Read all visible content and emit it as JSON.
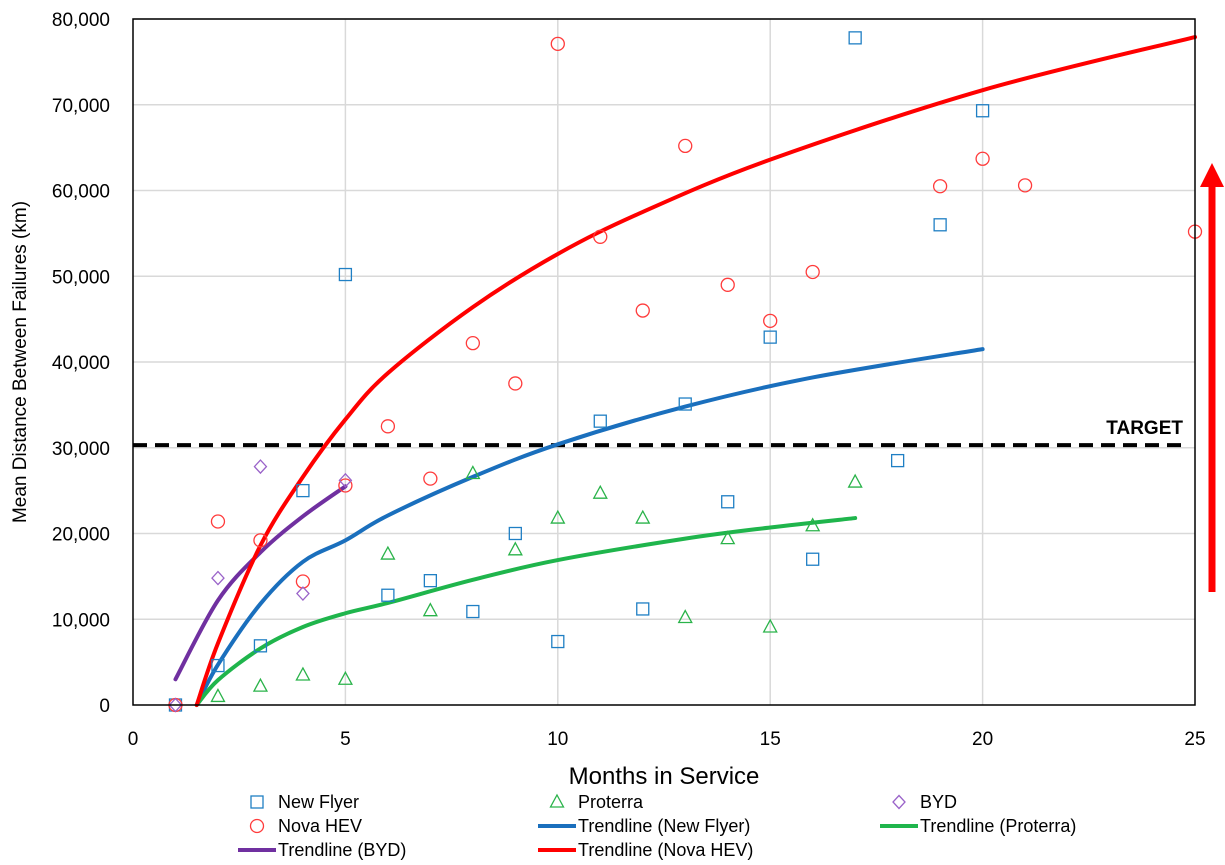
{
  "chart_data": {
    "type": "scatter",
    "title": "",
    "xlabel": "Months in Service",
    "ylabel": "Mean Distance Between Failures (km)",
    "xlim": [
      0,
      25
    ],
    "ylim": [
      0,
      80000
    ],
    "x_ticks": [
      0,
      5,
      10,
      15,
      20,
      25
    ],
    "y_ticks": [
      0,
      10000,
      20000,
      30000,
      40000,
      50000,
      60000,
      70000,
      80000
    ],
    "x_tick_labels": [
      "0",
      "5",
      "10",
      "15",
      "20",
      "25"
    ],
    "y_tick_labels": [
      "0",
      "10,000",
      "20,000",
      "30,000",
      "40,000",
      "50,000",
      "60,000",
      "70,000",
      "80,000"
    ],
    "grid": "vertical",
    "legend_position": "bottom",
    "target": {
      "label": "TARGET",
      "value": 30300
    },
    "arrow": {
      "direction": "up",
      "color": "#ff0000"
    },
    "series": [
      {
        "name": "New Flyer",
        "kind": "scatter",
        "marker": "square",
        "color": "#1f7fc4",
        "points": [
          [
            1,
            0
          ],
          [
            2,
            4600
          ],
          [
            3,
            6900
          ],
          [
            4,
            25000
          ],
          [
            5,
            50200
          ],
          [
            6,
            12800
          ],
          [
            7,
            14500
          ],
          [
            8,
            10900
          ],
          [
            9,
            20000
          ],
          [
            10,
            7400
          ],
          [
            11,
            33100
          ],
          [
            12,
            11200
          ],
          [
            13,
            35100
          ],
          [
            14,
            23700
          ],
          [
            15,
            42900
          ],
          [
            16,
            17000
          ],
          [
            17,
            77800
          ],
          [
            18,
            28500
          ],
          [
            19,
            56000
          ],
          [
            20,
            69300
          ]
        ]
      },
      {
        "name": "Nova HEV",
        "kind": "scatter",
        "marker": "circle",
        "color": "#ff3b3b",
        "points": [
          [
            1,
            0
          ],
          [
            2,
            21400
          ],
          [
            3,
            19200
          ],
          [
            4,
            14400
          ],
          [
            5,
            25600
          ],
          [
            6,
            32500
          ],
          [
            7,
            26400
          ],
          [
            8,
            42200
          ],
          [
            9,
            37500
          ],
          [
            10,
            77100
          ],
          [
            11,
            54600
          ],
          [
            12,
            46000
          ],
          [
            13,
            65200
          ],
          [
            14,
            49000
          ],
          [
            15,
            44800
          ],
          [
            16,
            50500
          ],
          [
            19,
            60500
          ],
          [
            20,
            63700
          ],
          [
            21,
            60600
          ],
          [
            25,
            55200
          ]
        ]
      },
      {
        "name": "Proterra",
        "kind": "scatter",
        "marker": "triangle",
        "color": "#2ab34a",
        "points": [
          [
            2,
            1000
          ],
          [
            3,
            2200
          ],
          [
            4,
            3500
          ],
          [
            5,
            3000
          ],
          [
            6,
            17600
          ],
          [
            7,
            11000
          ],
          [
            8,
            27000
          ],
          [
            9,
            18100
          ],
          [
            10,
            21800
          ],
          [
            11,
            24700
          ],
          [
            12,
            21800
          ],
          [
            13,
            10200
          ],
          [
            14,
            19400
          ],
          [
            15,
            9100
          ],
          [
            16,
            20900
          ],
          [
            17,
            26000
          ]
        ]
      },
      {
        "name": "BYD",
        "kind": "scatter",
        "marker": "diamond",
        "color": "#9a63c9",
        "points": [
          [
            1,
            0
          ],
          [
            2,
            14800
          ],
          [
            3,
            27800
          ],
          [
            4,
            13000
          ],
          [
            5,
            26200
          ]
        ]
      },
      {
        "name": "Trendline (New Flyer)",
        "kind": "line",
        "color": "#1a6fbd",
        "points": [
          [
            1.5,
            0
          ],
          [
            2,
            4700
          ],
          [
            3,
            11800
          ],
          [
            4,
            16700
          ],
          [
            5,
            19200
          ],
          [
            6,
            22100
          ],
          [
            8,
            26600
          ],
          [
            10,
            30400
          ],
          [
            13,
            34800
          ],
          [
            16,
            38200
          ],
          [
            20,
            41500
          ]
        ]
      },
      {
        "name": "Trendline (Proterra)",
        "kind": "line",
        "color": "#1fb54c",
        "points": [
          [
            1.5,
            0
          ],
          [
            2,
            2900
          ],
          [
            3,
            6600
          ],
          [
            4,
            9100
          ],
          [
            5,
            10700
          ],
          [
            6,
            11900
          ],
          [
            8,
            14600
          ],
          [
            10,
            16900
          ],
          [
            13,
            19400
          ],
          [
            15,
            20700
          ],
          [
            17,
            21800
          ]
        ]
      },
      {
        "name": "Trendline (BYD)",
        "kind": "line",
        "color": "#7030a0",
        "points": [
          [
            1,
            3000
          ],
          [
            2,
            12200
          ],
          [
            3,
            17800
          ],
          [
            4,
            22000
          ],
          [
            5,
            25500
          ]
        ]
      },
      {
        "name": "Trendline (Nova HEV)",
        "kind": "line",
        "color": "#ff0000",
        "points": [
          [
            1.5,
            0
          ],
          [
            2,
            7200
          ],
          [
            3,
            18600
          ],
          [
            4,
            26600
          ],
          [
            5,
            33300
          ],
          [
            6,
            38700
          ],
          [
            8,
            46400
          ],
          [
            10,
            52600
          ],
          [
            12,
            57500
          ],
          [
            15,
            63600
          ],
          [
            20,
            71700
          ],
          [
            25,
            77900
          ]
        ]
      }
    ]
  }
}
